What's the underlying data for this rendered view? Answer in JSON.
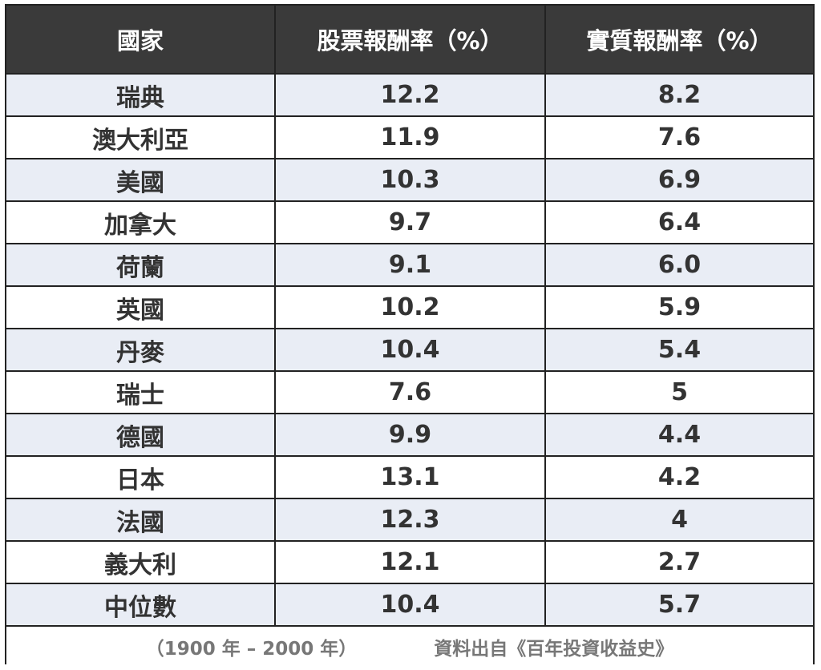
{
  "chart_data": {
    "type": "table",
    "columns": [
      "國家",
      "股票報酬率（%）",
      "實質報酬率（%）"
    ],
    "rows": [
      {
        "country": "瑞典",
        "stock": "12.2",
        "real": "8.2"
      },
      {
        "country": "澳大利亞",
        "stock": "11.9",
        "real": "7.6"
      },
      {
        "country": "美國",
        "stock": "10.3",
        "real": "6.9"
      },
      {
        "country": "加拿大",
        "stock": "9.7",
        "real": "6.4"
      },
      {
        "country": "荷蘭",
        "stock": "9.1",
        "real": "6.0"
      },
      {
        "country": "英國",
        "stock": "10.2",
        "real": "5.9"
      },
      {
        "country": "丹麥",
        "stock": "10.4",
        "real": "5.4"
      },
      {
        "country": "瑞士",
        "stock": "7.6",
        "real": "5"
      },
      {
        "country": "德國",
        "stock": "9.9",
        "real": "4.4"
      },
      {
        "country": "日本",
        "stock": "13.1",
        "real": "4.2"
      },
      {
        "country": "法國",
        "stock": "12.3",
        "real": "4"
      },
      {
        "country": "義大利",
        "stock": "12.1",
        "real": "2.7"
      },
      {
        "country": "中位數",
        "stock": "10.4",
        "real": "5.7"
      }
    ],
    "footer": {
      "period": "（1900 年 – 2000 年）",
      "source": "資料出自《百年投資收益史》"
    }
  }
}
